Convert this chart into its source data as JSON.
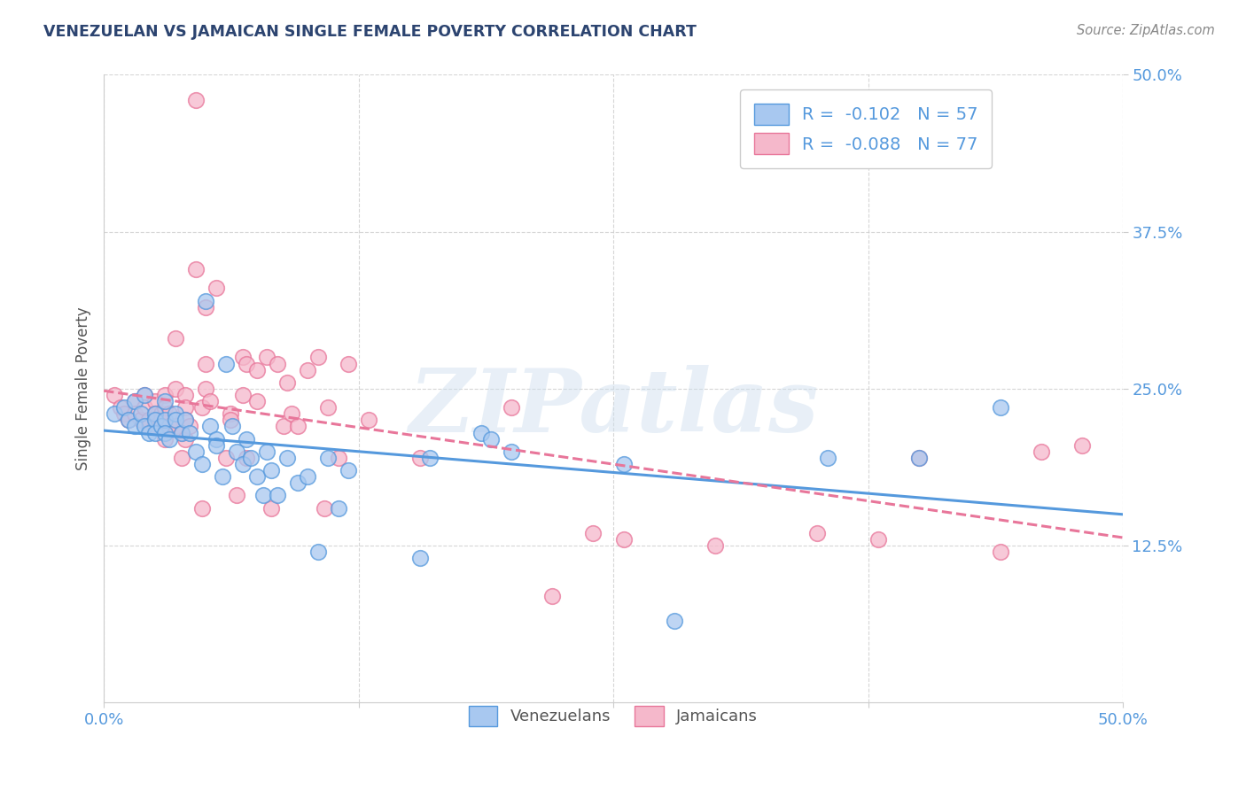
{
  "title": "VENEZUELAN VS JAMAICAN SINGLE FEMALE POVERTY CORRELATION CHART",
  "source": "Source: ZipAtlas.com",
  "ylabel": "Single Female Poverty",
  "venezuelan_color": "#a8c8f0",
  "jamaican_color": "#f5b8cb",
  "venezuelan_line_color": "#5599dd",
  "jamaican_line_color": "#e8769a",
  "R_venezuelan": -0.102,
  "N_venezuelan": 57,
  "R_jamaican": -0.088,
  "N_jamaican": 77,
  "venezuelan_scatter": [
    [
      0.005,
      0.23
    ],
    [
      0.01,
      0.235
    ],
    [
      0.012,
      0.225
    ],
    [
      0.015,
      0.24
    ],
    [
      0.015,
      0.22
    ],
    [
      0.018,
      0.23
    ],
    [
      0.02,
      0.245
    ],
    [
      0.02,
      0.22
    ],
    [
      0.022,
      0.215
    ],
    [
      0.025,
      0.23
    ],
    [
      0.025,
      0.225
    ],
    [
      0.025,
      0.215
    ],
    [
      0.028,
      0.22
    ],
    [
      0.03,
      0.24
    ],
    [
      0.03,
      0.225
    ],
    [
      0.03,
      0.215
    ],
    [
      0.032,
      0.21
    ],
    [
      0.035,
      0.23
    ],
    [
      0.035,
      0.225
    ],
    [
      0.038,
      0.215
    ],
    [
      0.04,
      0.225
    ],
    [
      0.042,
      0.215
    ],
    [
      0.045,
      0.2
    ],
    [
      0.048,
      0.19
    ],
    [
      0.05,
      0.32
    ],
    [
      0.052,
      0.22
    ],
    [
      0.055,
      0.21
    ],
    [
      0.055,
      0.205
    ],
    [
      0.058,
      0.18
    ],
    [
      0.06,
      0.27
    ],
    [
      0.063,
      0.22
    ],
    [
      0.065,
      0.2
    ],
    [
      0.068,
      0.19
    ],
    [
      0.07,
      0.21
    ],
    [
      0.072,
      0.195
    ],
    [
      0.075,
      0.18
    ],
    [
      0.078,
      0.165
    ],
    [
      0.08,
      0.2
    ],
    [
      0.082,
      0.185
    ],
    [
      0.085,
      0.165
    ],
    [
      0.09,
      0.195
    ],
    [
      0.095,
      0.175
    ],
    [
      0.1,
      0.18
    ],
    [
      0.105,
      0.12
    ],
    [
      0.11,
      0.195
    ],
    [
      0.115,
      0.155
    ],
    [
      0.12,
      0.185
    ],
    [
      0.155,
      0.115
    ],
    [
      0.16,
      0.195
    ],
    [
      0.185,
      0.215
    ],
    [
      0.19,
      0.21
    ],
    [
      0.2,
      0.2
    ],
    [
      0.255,
      0.19
    ],
    [
      0.28,
      0.065
    ],
    [
      0.355,
      0.195
    ],
    [
      0.4,
      0.195
    ],
    [
      0.44,
      0.235
    ]
  ],
  "jamaican_scatter": [
    [
      0.005,
      0.245
    ],
    [
      0.008,
      0.235
    ],
    [
      0.01,
      0.23
    ],
    [
      0.012,
      0.225
    ],
    [
      0.015,
      0.24
    ],
    [
      0.015,
      0.23
    ],
    [
      0.018,
      0.225
    ],
    [
      0.02,
      0.245
    ],
    [
      0.02,
      0.235
    ],
    [
      0.022,
      0.225
    ],
    [
      0.022,
      0.22
    ],
    [
      0.025,
      0.24
    ],
    [
      0.025,
      0.23
    ],
    [
      0.025,
      0.22
    ],
    [
      0.028,
      0.23
    ],
    [
      0.028,
      0.225
    ],
    [
      0.03,
      0.245
    ],
    [
      0.03,
      0.235
    ],
    [
      0.03,
      0.22
    ],
    [
      0.03,
      0.21
    ],
    [
      0.032,
      0.23
    ],
    [
      0.032,
      0.22
    ],
    [
      0.035,
      0.29
    ],
    [
      0.035,
      0.25
    ],
    [
      0.035,
      0.22
    ],
    [
      0.038,
      0.215
    ],
    [
      0.038,
      0.195
    ],
    [
      0.04,
      0.245
    ],
    [
      0.04,
      0.235
    ],
    [
      0.04,
      0.225
    ],
    [
      0.04,
      0.21
    ],
    [
      0.042,
      0.22
    ],
    [
      0.045,
      0.48
    ],
    [
      0.045,
      0.345
    ],
    [
      0.048,
      0.235
    ],
    [
      0.048,
      0.155
    ],
    [
      0.05,
      0.315
    ],
    [
      0.05,
      0.27
    ],
    [
      0.05,
      0.25
    ],
    [
      0.052,
      0.24
    ],
    [
      0.055,
      0.33
    ],
    [
      0.06,
      0.195
    ],
    [
      0.062,
      0.23
    ],
    [
      0.062,
      0.225
    ],
    [
      0.065,
      0.165
    ],
    [
      0.068,
      0.275
    ],
    [
      0.068,
      0.245
    ],
    [
      0.07,
      0.27
    ],
    [
      0.07,
      0.195
    ],
    [
      0.075,
      0.265
    ],
    [
      0.075,
      0.24
    ],
    [
      0.08,
      0.275
    ],
    [
      0.082,
      0.155
    ],
    [
      0.085,
      0.27
    ],
    [
      0.088,
      0.22
    ],
    [
      0.09,
      0.255
    ],
    [
      0.092,
      0.23
    ],
    [
      0.095,
      0.22
    ],
    [
      0.1,
      0.265
    ],
    [
      0.105,
      0.275
    ],
    [
      0.108,
      0.155
    ],
    [
      0.11,
      0.235
    ],
    [
      0.115,
      0.195
    ],
    [
      0.12,
      0.27
    ],
    [
      0.13,
      0.225
    ],
    [
      0.155,
      0.195
    ],
    [
      0.2,
      0.235
    ],
    [
      0.22,
      0.085
    ],
    [
      0.24,
      0.135
    ],
    [
      0.255,
      0.13
    ],
    [
      0.3,
      0.125
    ],
    [
      0.35,
      0.135
    ],
    [
      0.38,
      0.13
    ],
    [
      0.4,
      0.195
    ],
    [
      0.44,
      0.12
    ],
    [
      0.46,
      0.2
    ],
    [
      0.48,
      0.205
    ]
  ],
  "watermark_text": "ZIPatlas",
  "background_color": "#ffffff",
  "grid_color": "#cccccc",
  "title_color": "#2c4470",
  "axis_label_color": "#5599dd",
  "y_min": 0.0,
  "y_max": 0.5,
  "x_min": 0.0,
  "x_max": 0.5
}
